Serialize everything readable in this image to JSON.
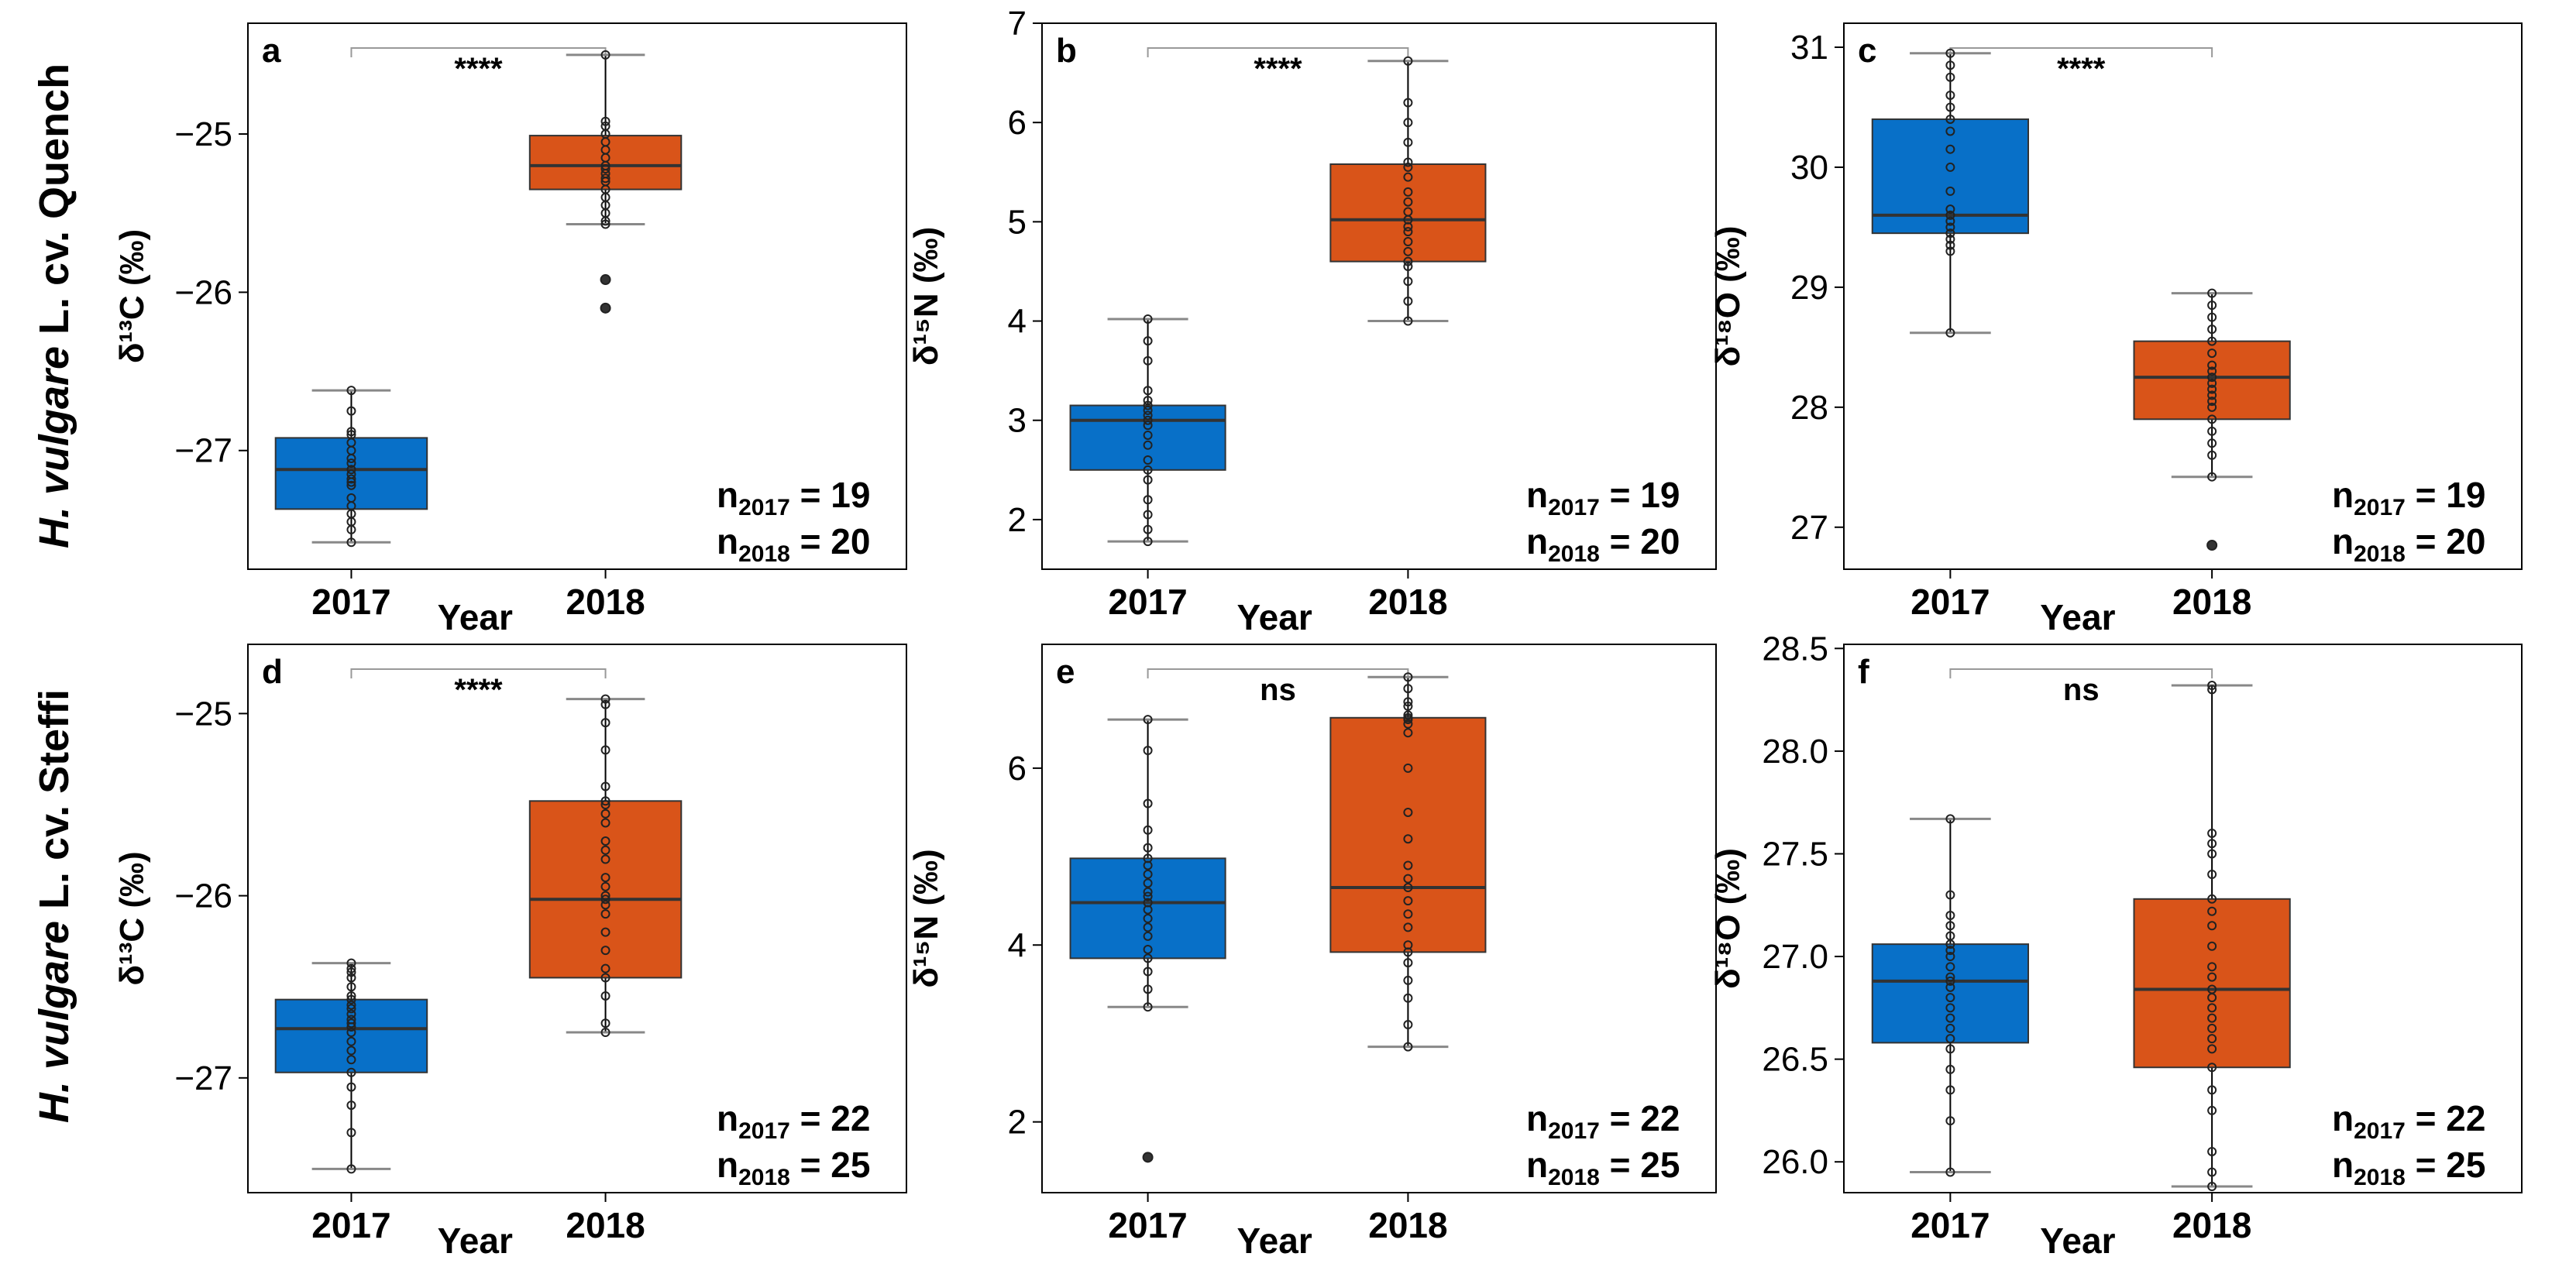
{
  "colors": {
    "y2017": "#0870C8",
    "y2018": "#D95419"
  },
  "rows": [
    {
      "label_italic": "H. vulgare",
      "label_rest": " L. cv. Quench"
    },
    {
      "label_italic": "H. vulgare",
      "label_rest": " L. cv. Steffi"
    }
  ],
  "chart_data": [
    {
      "type": "box",
      "panel": "a",
      "ylabel": "δ¹³C (‰)",
      "xlabel": "Year",
      "categories": [
        "2017",
        "2018"
      ],
      "ylim": [
        -27.75,
        -24.3
      ],
      "yticks": [
        -27,
        -26,
        -25
      ],
      "ytick_labels": [
        "−27",
        "−26",
        "−25"
      ],
      "significance": "****",
      "n_labels": [
        "= 19",
        "= 20"
      ],
      "boxes": [
        {
          "year": "2017",
          "whisker_low": -27.58,
          "q1": -27.37,
          "median": -27.12,
          "q3": -26.92,
          "whisker_high": -26.62,
          "points": [
            -27.58,
            -27.5,
            -27.45,
            -27.4,
            -27.35,
            -27.3,
            -27.22,
            -27.2,
            -27.18,
            -27.15,
            -27.12,
            -27.08,
            -27.05,
            -27.0,
            -26.95,
            -26.9,
            -26.88,
            -26.75,
            -26.62
          ]
        },
        {
          "year": "2018",
          "whisker_low": -25.57,
          "q1": -25.35,
          "median": -25.2,
          "q3": -25.01,
          "whisker_high": -24.5,
          "points": [
            -24.5,
            -24.92,
            -24.95,
            -25.0,
            -25.05,
            -25.1,
            -25.15,
            -25.2,
            -25.22,
            -25.25,
            -25.28,
            -25.3,
            -25.35,
            -25.4,
            -25.45,
            -25.5,
            -25.55,
            -25.57,
            -25.92,
            -26.1
          ]
        }
      ]
    },
    {
      "type": "box",
      "panel": "b",
      "ylabel": "δ¹⁵N (‰)",
      "xlabel": "Year",
      "categories": [
        "2017",
        "2018"
      ],
      "ylim": [
        1.5,
        7.0
      ],
      "yticks": [
        2,
        3,
        4,
        5,
        6,
        7
      ],
      "ytick_labels": [
        "2",
        "3",
        "4",
        "5",
        "6",
        "7"
      ],
      "significance": "****",
      "n_labels": [
        "= 19",
        "= 20"
      ],
      "boxes": [
        {
          "year": "2017",
          "whisker_low": 1.78,
          "q1": 2.5,
          "median": 3.0,
          "q3": 3.15,
          "whisker_high": 4.02,
          "points": [
            1.78,
            1.9,
            2.05,
            2.2,
            2.4,
            2.5,
            2.6,
            2.75,
            2.85,
            2.95,
            3.0,
            3.05,
            3.1,
            3.15,
            3.2,
            3.3,
            3.6,
            3.8,
            4.02
          ]
        },
        {
          "year": "2018",
          "whisker_low": 4.0,
          "q1": 4.6,
          "median": 5.02,
          "q3": 5.58,
          "whisker_high": 6.62,
          "points": [
            4.0,
            4.2,
            4.4,
            4.55,
            4.6,
            4.7,
            4.8,
            4.9,
            4.95,
            5.02,
            5.1,
            5.2,
            5.3,
            5.45,
            5.55,
            5.6,
            5.8,
            6.0,
            6.2,
            6.62
          ]
        }
      ]
    },
    {
      "type": "box",
      "panel": "c",
      "ylabel": "δ¹⁸O (‰)",
      "xlabel": "Year",
      "categories": [
        "2017",
        "2018"
      ],
      "ylim": [
        26.65,
        31.2
      ],
      "yticks": [
        27,
        28,
        29,
        30,
        31
      ],
      "ytick_labels": [
        "27",
        "28",
        "29",
        "30",
        "31"
      ],
      "significance": "****",
      "n_labels": [
        "= 19",
        "= 20"
      ],
      "boxes": [
        {
          "year": "2017",
          "whisker_low": 28.62,
          "q1": 29.45,
          "median": 29.6,
          "q3": 30.4,
          "whisker_high": 30.95,
          "points": [
            28.62,
            29.3,
            29.35,
            29.4,
            29.45,
            29.5,
            29.55,
            29.6,
            29.65,
            29.8,
            30.0,
            30.15,
            30.3,
            30.4,
            30.5,
            30.6,
            30.75,
            30.85,
            30.95
          ]
        },
        {
          "year": "2018",
          "whisker_low": 27.42,
          "q1": 27.9,
          "median": 28.25,
          "q3": 28.55,
          "whisker_high": 28.95,
          "points": [
            26.85,
            27.42,
            27.6,
            27.7,
            27.8,
            27.9,
            28.0,
            28.05,
            28.1,
            28.15,
            28.2,
            28.25,
            28.3,
            28.35,
            28.45,
            28.55,
            28.65,
            28.75,
            28.85,
            28.95
          ]
        }
      ]
    },
    {
      "type": "box",
      "panel": "d",
      "ylabel": "δ¹³C (‰)",
      "xlabel": "Year",
      "categories": [
        "2017",
        "2018"
      ],
      "ylim": [
        -27.63,
        -24.62
      ],
      "yticks": [
        -27,
        -26,
        -25
      ],
      "ytick_labels": [
        "−27",
        "−26",
        "−25"
      ],
      "significance": "****",
      "n_labels": [
        "= 22",
        "= 25"
      ],
      "boxes": [
        {
          "year": "2017",
          "whisker_low": -27.5,
          "q1": -26.97,
          "median": -26.73,
          "q3": -26.57,
          "whisker_high": -26.37,
          "points": [
            -27.5,
            -27.3,
            -27.15,
            -27.05,
            -26.97,
            -26.9,
            -26.85,
            -26.8,
            -26.75,
            -26.72,
            -26.7,
            -26.68,
            -26.65,
            -26.62,
            -26.6,
            -26.57,
            -26.55,
            -26.5,
            -26.45,
            -26.42,
            -26.4,
            -26.37
          ]
        },
        {
          "year": "2018",
          "whisker_low": -26.75,
          "q1": -26.45,
          "median": -26.02,
          "q3": -25.48,
          "whisker_high": -24.92,
          "points": [
            -26.75,
            -26.7,
            -26.55,
            -26.45,
            -26.4,
            -26.3,
            -26.2,
            -26.1,
            -26.05,
            -26.02,
            -26.0,
            -25.95,
            -25.9,
            -25.8,
            -25.75,
            -25.7,
            -25.6,
            -25.55,
            -25.5,
            -25.48,
            -25.4,
            -25.2,
            -25.05,
            -24.95,
            -24.92
          ]
        }
      ]
    },
    {
      "type": "box",
      "panel": "e",
      "ylabel": "δ¹⁵N (‰)",
      "xlabel": "Year",
      "categories": [
        "2017",
        "2018"
      ],
      "ylim": [
        1.2,
        7.4
      ],
      "yticks": [
        2,
        4,
        6
      ],
      "ytick_labels": [
        "2",
        "4",
        "6"
      ],
      "significance": "ns",
      "n_labels": [
        "= 22",
        "= 25"
      ],
      "boxes": [
        {
          "year": "2017",
          "whisker_low": 3.3,
          "q1": 3.85,
          "median": 4.48,
          "q3": 4.98,
          "whisker_high": 6.55,
          "points": [
            1.6,
            3.3,
            3.5,
            3.7,
            3.85,
            3.95,
            4.1,
            4.2,
            4.3,
            4.4,
            4.48,
            4.55,
            4.6,
            4.7,
            4.8,
            4.9,
            4.98,
            5.1,
            5.3,
            5.6,
            6.2,
            6.55
          ]
        },
        {
          "year": "2018",
          "whisker_low": 2.85,
          "q1": 3.92,
          "median": 4.65,
          "q3": 6.57,
          "whisker_high": 7.03,
          "points": [
            2.85,
            3.1,
            3.4,
            3.6,
            3.8,
            3.92,
            4.0,
            4.2,
            4.35,
            4.5,
            4.65,
            4.75,
            4.9,
            5.2,
            5.5,
            6.0,
            6.4,
            6.5,
            6.55,
            6.57,
            6.6,
            6.7,
            6.75,
            6.9,
            7.03
          ]
        }
      ]
    },
    {
      "type": "box",
      "panel": "f",
      "ylabel": "δ¹⁸O (‰)",
      "xlabel": "Year",
      "categories": [
        "2017",
        "2018"
      ],
      "ylim": [
        25.85,
        28.52
      ],
      "yticks": [
        26.0,
        26.5,
        27.0,
        27.5,
        28.0,
        28.5
      ],
      "ytick_labels": [
        "26.0",
        "26.5",
        "27.0",
        "27.5",
        "28.0",
        "28.5"
      ],
      "significance": "ns",
      "n_labels": [
        "= 22",
        "= 25"
      ],
      "boxes": [
        {
          "year": "2017",
          "whisker_low": 25.95,
          "q1": 26.58,
          "median": 26.88,
          "q3": 27.06,
          "whisker_high": 27.67,
          "points": [
            25.95,
            26.2,
            26.35,
            26.45,
            26.55,
            26.6,
            26.65,
            26.7,
            26.75,
            26.8,
            26.85,
            26.88,
            26.9,
            26.95,
            27.0,
            27.03,
            27.06,
            27.1,
            27.15,
            27.2,
            27.3,
            27.67
          ]
        },
        {
          "year": "2018",
          "whisker_low": 25.88,
          "q1": 26.46,
          "median": 26.84,
          "q3": 27.28,
          "whisker_high": 28.32,
          "points": [
            25.88,
            25.95,
            26.05,
            26.25,
            26.35,
            26.46,
            26.55,
            26.6,
            26.65,
            26.7,
            26.75,
            26.8,
            26.84,
            26.9,
            26.95,
            27.05,
            27.15,
            27.22,
            27.28,
            27.4,
            27.5,
            27.55,
            27.6,
            28.3,
            28.32
          ]
        }
      ]
    }
  ]
}
